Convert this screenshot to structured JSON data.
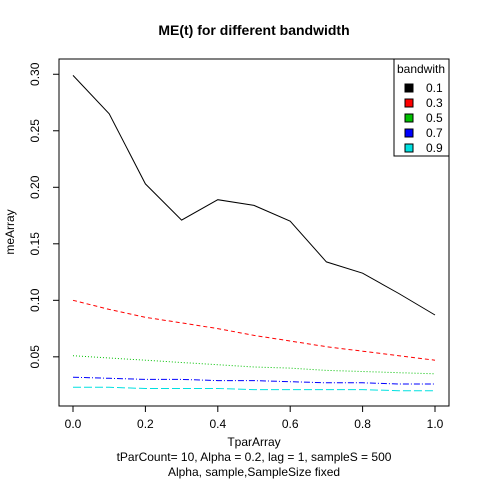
{
  "chart_data": {
    "type": "line",
    "title": "ME(t) for different bandwidth",
    "xlabel": "TparArray",
    "ylabel": "meArray",
    "subtitle_lines": [
      "tParCount= 10, Alpha = 0.2, lag = 1, sampleS = 500",
      "Alpha, sample,SampleSize fixed"
    ],
    "xlim": [
      0,
      1
    ],
    "ylim": [
      0.018,
      0.302
    ],
    "xticks": [
      "0.0",
      "0.2",
      "0.4",
      "0.6",
      "0.8",
      "1.0"
    ],
    "yticks": [
      "0.05",
      "0.10",
      "0.15",
      "0.20",
      "0.25",
      "0.30"
    ],
    "grid": false,
    "legend": {
      "title": "bandwith",
      "placement": "top-right",
      "entries": [
        "0.1",
        "0.3",
        "0.5",
        "0.7",
        "0.9"
      ]
    },
    "x": [
      0.0,
      0.1,
      0.2,
      0.3,
      0.4,
      0.5,
      0.6,
      0.7,
      0.8,
      0.9,
      1.0
    ],
    "series": [
      {
        "name": "0.1",
        "color": "#000000",
        "dash": "none",
        "values": [
          0.299,
          0.265,
          0.203,
          0.171,
          0.189,
          0.184,
          0.17,
          0.134,
          0.124,
          0.106,
          0.087
        ]
      },
      {
        "name": "0.3",
        "color": "#ff0000",
        "dash": "4,3",
        "values": [
          0.1,
          0.092,
          0.085,
          0.08,
          0.075,
          0.069,
          0.064,
          0.059,
          0.055,
          0.051,
          0.047
        ]
      },
      {
        "name": "0.5",
        "color": "#00c000",
        "dash": "1,2",
        "values": [
          0.051,
          0.049,
          0.047,
          0.045,
          0.043,
          0.041,
          0.04,
          0.038,
          0.037,
          0.036,
          0.035
        ]
      },
      {
        "name": "0.7",
        "color": "#0000ff",
        "dash": "6,2,1,2",
        "values": [
          0.032,
          0.031,
          0.03,
          0.03,
          0.029,
          0.029,
          0.028,
          0.027,
          0.027,
          0.026,
          0.026
        ]
      },
      {
        "name": "0.9",
        "color": "#00e0e0",
        "dash": "8,3",
        "values": [
          0.023,
          0.023,
          0.022,
          0.022,
          0.022,
          0.021,
          0.021,
          0.021,
          0.021,
          0.02,
          0.02
        ]
      }
    ]
  }
}
